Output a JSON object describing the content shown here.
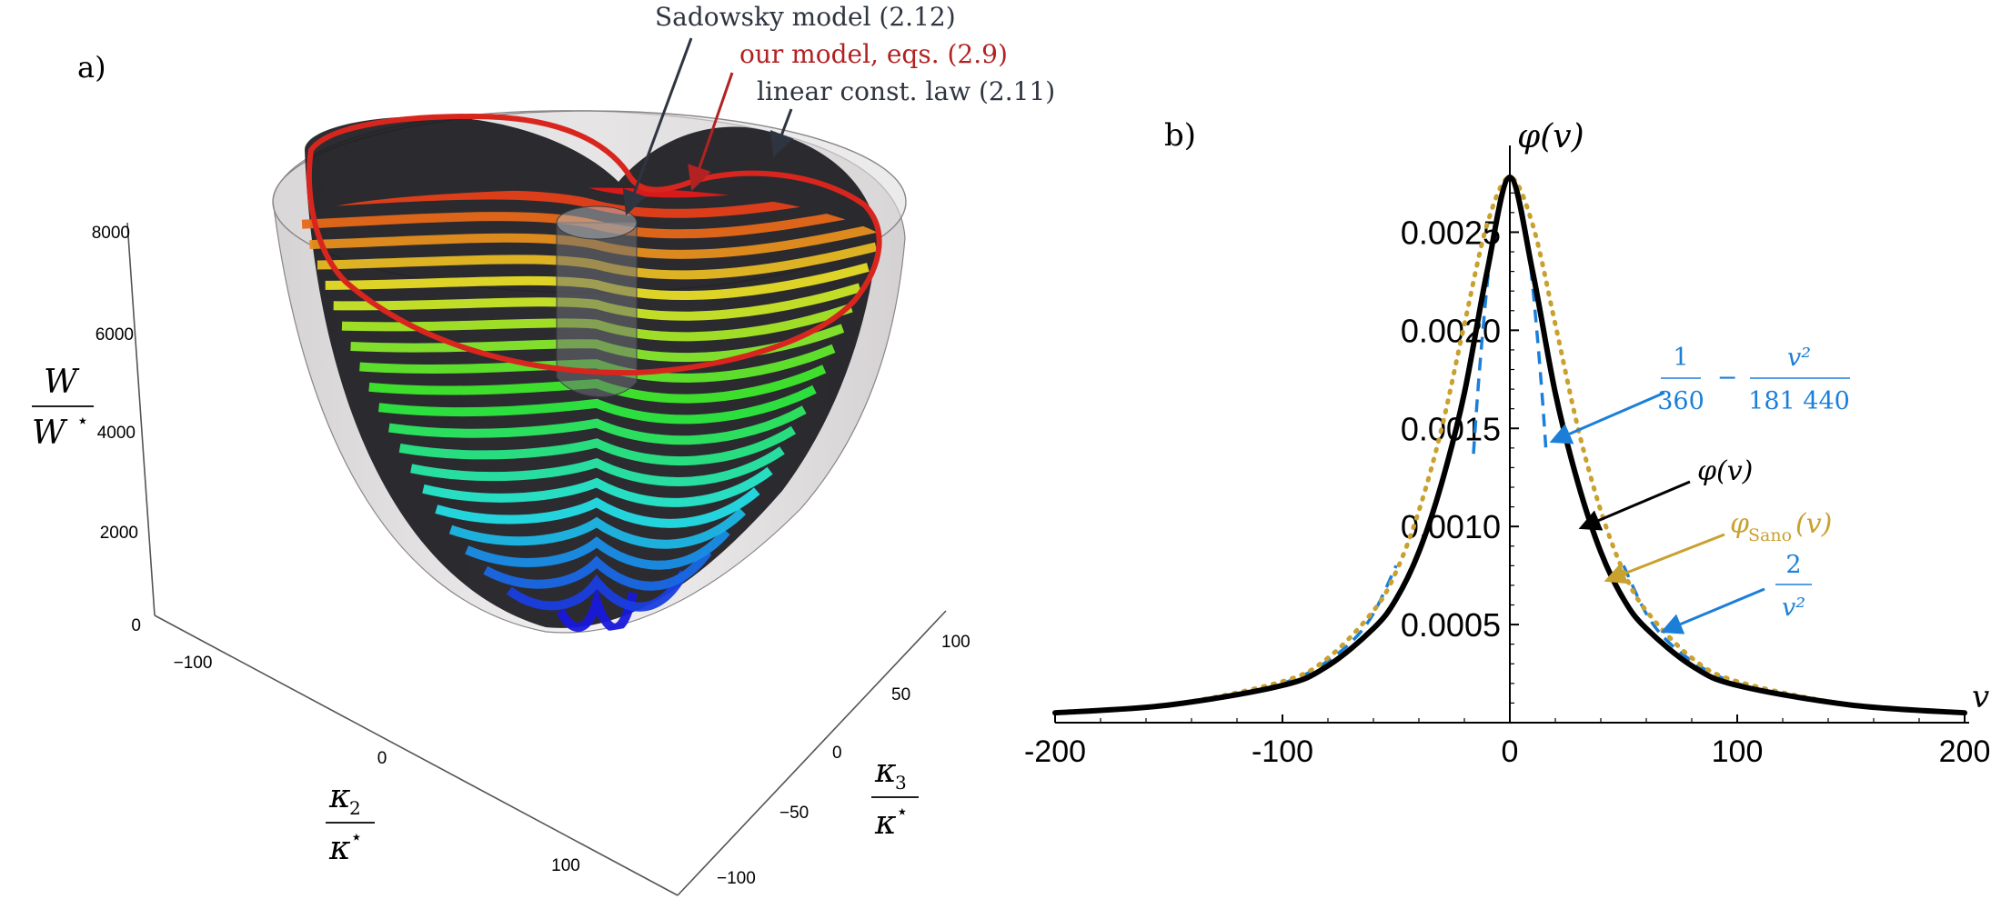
{
  "panel_a": {
    "label": "a)",
    "annotations": {
      "sadowsky": "Sadowsky model (2.12)",
      "our_model": "our model, eqs. (2.9)",
      "linear": "linear const. law (2.11)"
    },
    "z_axis": {
      "num": "W",
      "den": "W",
      "ticks": [
        "0",
        "2000",
        "4000",
        "6000",
        "8000"
      ]
    },
    "x_axis": {
      "num": "κ",
      "sub": "2",
      "den": "κ",
      "ticks": [
        "−100",
        "0",
        "100"
      ]
    },
    "y_axis": {
      "num": "κ",
      "sub": "3",
      "den": "κ",
      "ticks": [
        "−100",
        "−50",
        "0",
        "50",
        "100"
      ]
    },
    "star": "⋆",
    "colors": {
      "our_model": "#b22222",
      "sadowsky": "#2e3440",
      "linear": "#2e3440"
    }
  },
  "panel_b": {
    "label": "b)",
    "annotations": {
      "taylor": {
        "n1": "1",
        "d1": "360",
        "minus": "−",
        "n2": "v²",
        "d2": "181 440"
      },
      "phi": "φ(v)",
      "sano": "φ",
      "sano_sub": "Sano",
      "sano_arg": "(v)",
      "asym": {
        "n": "2",
        "d": "v²"
      }
    },
    "colors": {
      "phi": "#000000",
      "sano": "#c9a12f",
      "series": "#1b7fd9"
    }
  },
  "chart_data": {
    "type": "line",
    "title": "",
    "xlabel": "v",
    "ylabel": "φ(v)",
    "xlim": [
      -200,
      200
    ],
    "ylim": [
      0,
      0.00278
    ],
    "x_ticks": [
      "-200",
      "-100",
      "0",
      "100",
      "200"
    ],
    "y_ticks": [
      "0.0005",
      "0.0010",
      "0.0015",
      "0.0020",
      "0.0025"
    ],
    "series": [
      {
        "name": "φ(v)",
        "style": "solid",
        "color": "#000000",
        "x": [
          -200,
          -150,
          -100,
          -80,
          -60,
          -50,
          -40,
          -30,
          -20,
          -10,
          0,
          10,
          20,
          30,
          40,
          50,
          60,
          80,
          100,
          150,
          200
        ],
        "y": [
          5e-05,
          9e-05,
          0.00019,
          0.00029,
          0.00048,
          0.00063,
          0.00087,
          0.00122,
          0.00168,
          0.0023,
          0.00278,
          0.0023,
          0.00168,
          0.00122,
          0.00087,
          0.00063,
          0.00048,
          0.00029,
          0.00019,
          9e-05,
          5e-05
        ]
      },
      {
        "name": "φ_Sano(v)",
        "style": "dotted",
        "color": "#c9a12f",
        "x": [
          -200,
          -150,
          -100,
          -80,
          -60,
          -50,
          -40,
          -30,
          -20,
          -10,
          0,
          10,
          20,
          30,
          40,
          50,
          60,
          80,
          100,
          150,
          200
        ],
        "y": [
          5e-05,
          9e-05,
          0.00021,
          0.00033,
          0.00057,
          0.00077,
          0.00108,
          0.0015,
          0.00203,
          0.00254,
          0.00278,
          0.00254,
          0.00203,
          0.0015,
          0.00108,
          0.00077,
          0.00057,
          0.00033,
          0.00021,
          9e-05,
          5e-05
        ]
      },
      {
        "name": "1/360 − v²/181 440",
        "style": "dashed",
        "color": "#1b7fd9",
        "x": [
          -16,
          -14,
          -12,
          -10,
          -8,
          -6,
          -4,
          -2,
          0,
          2,
          4,
          6,
          8,
          10,
          12,
          14,
          16
        ],
        "y": [
          0.00137,
          0.0017,
          0.00198,
          0.00223,
          0.00243,
          0.00258,
          0.00269,
          0.00276,
          0.00278,
          0.00276,
          0.00269,
          0.00258,
          0.00243,
          0.00223,
          0.00198,
          0.0017,
          0.00137
        ]
      },
      {
        "name": "2/v²",
        "style": "dashed",
        "color": "#1b7fd9",
        "x": [
          -200,
          -170,
          -140,
          -120,
          -100,
          -85,
          -70,
          -60,
          -50,
          50,
          60,
          70,
          85,
          100,
          120,
          140,
          170,
          200
        ],
        "y": [
          5e-05,
          6.9e-05,
          0.000102,
          0.000139,
          0.0002,
          0.000277,
          0.000408,
          0.000556,
          0.0008,
          0.0008,
          0.000556,
          0.000408,
          0.000277,
          0.0002,
          0.000139,
          0.000102,
          6.9e-05,
          5e-05
        ]
      }
    ]
  }
}
